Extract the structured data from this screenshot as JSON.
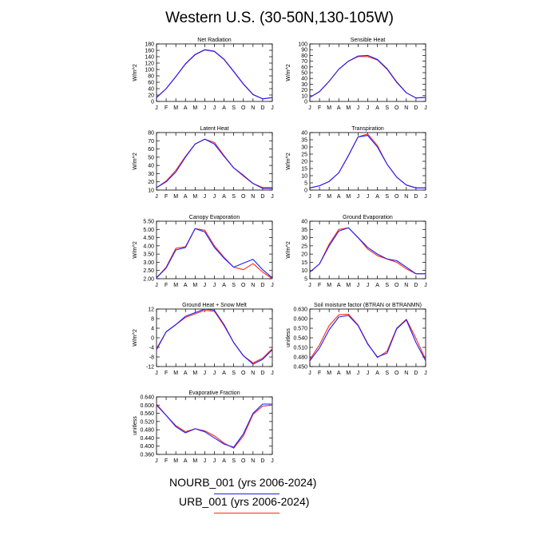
{
  "title": "Western U.S. (30-50N,130-105W)",
  "colors": {
    "nourb": "#1c1cff",
    "urb": "#ff2a1a",
    "axis": "#000000"
  },
  "months": [
    "J",
    "F",
    "M",
    "A",
    "M",
    "J",
    "J",
    "A",
    "S",
    "O",
    "N",
    "D",
    "J"
  ],
  "legend": [
    {
      "label": "NOURB_001 (yrs 2006-2024)",
      "color": "#1c1cff"
    },
    {
      "label": "URB_001 (yrs 2006-2024)",
      "color": "#ff2a1a"
    }
  ],
  "chart_data": [
    {
      "type": "line",
      "title": "Net Radiation",
      "ylabel": "W/m^2",
      "ylim": [
        0,
        180
      ],
      "yticks": [
        "0",
        "20",
        "40",
        "60",
        "80",
        "100",
        "120",
        "140",
        "160",
        "180"
      ],
      "series": [
        {
          "name": "NOURB_001 (yrs 2006-2024)",
          "values": [
            12,
            40,
            78,
            118,
            147,
            162,
            157,
            132,
            94,
            55,
            22,
            8,
            12
          ]
        },
        {
          "name": "URB_001 (yrs 2006-2024)",
          "values": [
            12,
            40,
            77,
            117,
            146,
            161,
            156,
            131,
            93,
            54,
            21,
            8,
            12
          ]
        }
      ]
    },
    {
      "type": "line",
      "title": "Sensible Heat",
      "ylabel": "W/m^2",
      "ylim": [
        0,
        100
      ],
      "yticks": [
        "0",
        "10",
        "20",
        "30",
        "40",
        "50",
        "60",
        "70",
        "80",
        "90",
        "100"
      ],
      "series": [
        {
          "name": "NOURB_001 (yrs 2006-2024)",
          "values": [
            7,
            17,
            35,
            56,
            70,
            79,
            80,
            73,
            57,
            34,
            15,
            6,
            7
          ]
        },
        {
          "name": "URB_001 (yrs 2006-2024)",
          "values": [
            7,
            17,
            35,
            56,
            70,
            78,
            78,
            72,
            56,
            33,
            15,
            6,
            7
          ]
        }
      ]
    },
    {
      "type": "line",
      "title": "Latent Heat",
      "ylabel": "W/m^2",
      "ylim": [
        10,
        80
      ],
      "yticks": [
        "10",
        "20",
        "30",
        "40",
        "50",
        "60",
        "70",
        "80"
      ],
      "series": [
        {
          "name": "NOURB_001 (yrs 2006-2024)",
          "values": [
            13,
            20,
            32,
            50,
            66,
            72,
            66,
            51,
            37,
            28,
            18,
            12,
            12
          ]
        },
        {
          "name": "URB_001 (yrs 2006-2024)",
          "values": [
            13,
            21,
            34,
            51,
            66,
            72,
            68,
            52,
            37,
            27,
            18,
            13,
            13
          ]
        }
      ]
    },
    {
      "type": "line",
      "title": "Transpiration",
      "ylabel": "W/m^2",
      "ylim": [
        0,
        40
      ],
      "yticks": [
        "0",
        "5",
        "10",
        "15",
        "20",
        "25",
        "30",
        "35",
        "40"
      ],
      "series": [
        {
          "name": "NOURB_001 (yrs 2006-2024)",
          "values": [
            1.5,
            3,
            6,
            12,
            24,
            37,
            38,
            30,
            18,
            9,
            3.5,
            1.5,
            1.5
          ]
        },
        {
          "name": "URB_001 (yrs 2006-2024)",
          "values": [
            1.5,
            3,
            6,
            12,
            24,
            37,
            39,
            31,
            18,
            9,
            3.5,
            1.5,
            1.5
          ]
        }
      ]
    },
    {
      "type": "line",
      "title": "Canopy Evaporation",
      "ylabel": "W/m^2",
      "ylim": [
        2.0,
        5.5
      ],
      "yticks": [
        "2.00",
        "2.50",
        "3.00",
        "3.50",
        "4.00",
        "4.50",
        "5.00",
        "5.50"
      ],
      "series": [
        {
          "name": "NOURB_001 (yrs 2006-2024)",
          "values": [
            2.05,
            2.65,
            3.75,
            3.9,
            5.05,
            4.85,
            3.9,
            3.25,
            2.7,
            2.95,
            3.18,
            2.55,
            2.05
          ]
        },
        {
          "name": "URB_001 (yrs 2006-2024)",
          "values": [
            2.05,
            2.7,
            3.85,
            3.95,
            5.05,
            4.95,
            4.0,
            3.3,
            2.7,
            2.55,
            2.92,
            2.4,
            2.0
          ]
        }
      ]
    },
    {
      "type": "line",
      "title": "Ground Evaporation",
      "ylabel": "W/m^2",
      "ylim": [
        5,
        40
      ],
      "yticks": [
        "5",
        "10",
        "15",
        "20",
        "25",
        "30",
        "35",
        "40"
      ],
      "series": [
        {
          "name": "NOURB_001 (yrs 2006-2024)",
          "values": [
            9,
            14,
            25,
            34,
            36,
            30,
            24,
            20,
            17,
            16,
            12,
            8,
            8
          ]
        },
        {
          "name": "URB_001 (yrs 2006-2024)",
          "values": [
            9,
            14,
            26,
            35,
            36,
            30,
            23,
            19,
            17,
            15,
            11,
            8,
            8
          ]
        }
      ]
    },
    {
      "type": "line",
      "title": "Ground Heat + Snow Melt",
      "ylabel": "W/m^2",
      "ylim": [
        -12,
        12
      ],
      "yticks": [
        "-12",
        "-8",
        "-4",
        "0",
        "4",
        "8",
        "12"
      ],
      "series": [
        {
          "name": "NOURB_001 (yrs 2006-2024)",
          "values": [
            -5,
            2.5,
            5.5,
            9,
            10.5,
            12,
            11.5,
            5.5,
            -2,
            -7.5,
            -11,
            -9,
            -5
          ]
        },
        {
          "name": "URB_001 (yrs 2006-2024)",
          "values": [
            -4.5,
            2.5,
            5.5,
            8.5,
            10,
            11.5,
            11,
            5,
            -2,
            -7.5,
            -10.5,
            -8.5,
            -4.5
          ]
        }
      ]
    },
    {
      "type": "line",
      "title": "Soil moisture factor (BTRAN or BTRANMN)",
      "ylabel": "unitless",
      "ylim": [
        0.45,
        0.63
      ],
      "yticks": [
        "0.450",
        "0.480",
        "0.510",
        "0.540",
        "0.570",
        "0.600",
        "0.630"
      ],
      "series": [
        {
          "name": "NOURB_001 (yrs 2006-2024)",
          "values": [
            0.468,
            0.508,
            0.565,
            0.605,
            0.61,
            0.578,
            0.52,
            0.48,
            0.492,
            0.568,
            0.596,
            0.525,
            0.468
          ]
        },
        {
          "name": "URB_001 (yrs 2006-2024)",
          "values": [
            0.472,
            0.518,
            0.578,
            0.612,
            0.614,
            0.58,
            0.522,
            0.478,
            0.498,
            0.57,
            0.598,
            0.538,
            0.472
          ]
        }
      ]
    },
    {
      "type": "line",
      "title": "Evaporative Fraction",
      "ylabel": "unitless",
      "ylim": [
        0.36,
        0.64
      ],
      "yticks": [
        "0.360",
        "0.400",
        "0.440",
        "0.480",
        "0.520",
        "0.560",
        "0.600",
        "0.640"
      ],
      "series": [
        {
          "name": "NOURB_001 (yrs 2006-2024)",
          "values": [
            0.6,
            0.55,
            0.495,
            0.465,
            0.485,
            0.47,
            0.44,
            0.41,
            0.395,
            0.46,
            0.56,
            0.605,
            0.605
          ]
        },
        {
          "name": "URB_001 (yrs 2006-2024)",
          "values": [
            0.605,
            0.55,
            0.5,
            0.47,
            0.485,
            0.475,
            0.45,
            0.415,
            0.39,
            0.45,
            0.555,
            0.595,
            0.6
          ]
        }
      ]
    }
  ]
}
